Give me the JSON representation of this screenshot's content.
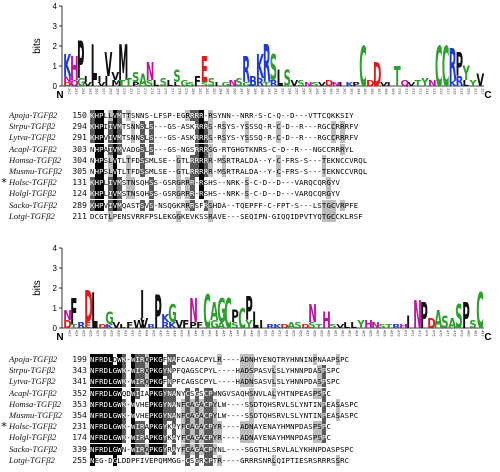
{
  "logo_a": {
    "ylabel": "bits",
    "yticks": [
      "0",
      "1",
      "2",
      "3",
      "4"
    ],
    "n_label": "N",
    "c_label": "C",
    "columns": [
      [
        [
          "K",
          1.1
        ],
        [
          "N",
          0.3
        ],
        [
          "D",
          0.2
        ]
      ],
      [
        [
          "H",
          1.2
        ],
        [
          "Q",
          0.3
        ]
      ],
      [
        [
          "P",
          1.9
        ],
        [
          "G",
          0.4
        ]
      ],
      [
        [
          "I",
          0.3
        ],
        [
          "V",
          0.2
        ]
      ],
      [
        [
          "L",
          1.8
        ],
        [
          "I",
          0.3
        ]
      ],
      [
        [
          "I",
          0.3
        ],
        [
          "V",
          0.2
        ]
      ],
      [
        [
          "V",
          1.2
        ],
        [
          "I",
          0.5
        ]
      ],
      [
        [
          "V",
          0.4
        ],
        [
          "M",
          0.3
        ]
      ],
      [
        [
          "M",
          1.8
        ],
        [
          "T",
          0.3
        ]
      ],
      [
        [
          "T",
          0.4
        ]
      ],
      [
        [
          "S",
          0.5
        ],
        [
          "P",
          0.2
        ]
      ],
      [
        [
          "A",
          0.6
        ]
      ],
      [
        [
          "N",
          0.9
        ],
        [
          "S",
          0.3
        ]
      ],
      [
        [
          "L",
          0.3
        ]
      ],
      [
        [
          "S",
          0.4
        ]
      ],
      [
        [
          "L",
          0.3
        ]
      ],
      [
        [
          "S",
          0.6
        ],
        [
          "L",
          0.2
        ]
      ],
      [
        [
          "G",
          0.3
        ]
      ],
      [
        [
          "S",
          0.2
        ]
      ],
      [
        [
          "F",
          0.5
        ]
      ],
      [
        [
          "E",
          1.3
        ],
        [
          "S",
          0.2
        ]
      ],
      [
        [
          "S",
          0.4
        ]
      ],
      [
        [
          "I",
          0.2
        ]
      ],
      [
        [
          "G",
          0.2
        ]
      ],
      [
        [
          "N",
          0.3
        ]
      ],
      [
        [
          "S",
          0.4
        ]
      ],
      [
        [
          "R",
          1.3
        ],
        [
          "G",
          0.2
        ]
      ],
      [
        [
          "B",
          0.5
        ]
      ],
      [
        [
          "K",
          1.2
        ],
        [
          "R",
          0.4
        ]
      ],
      [
        [
          "R",
          1.9
        ],
        [
          "T",
          0.2
        ]
      ],
      [
        [
          "S",
          1.3
        ],
        [
          "R",
          0.3
        ]
      ],
      [
        [
          "L",
          0.8
        ]
      ],
      [
        [
          "S",
          0.8
        ]
      ],
      [
        [
          "V",
          0.3
        ]
      ],
      [
        [
          "S",
          0.3
        ]
      ],
      [
        [
          "N",
          0.2
        ]
      ],
      [
        [
          "S",
          0.2
        ]
      ],
      [
        [
          "V",
          0.2
        ]
      ],
      [
        [
          "D",
          0.3
        ]
      ],
      [
        [
          "N",
          0.2
        ]
      ],
      [
        [
          "I",
          0.2
        ]
      ],
      [
        [
          "K",
          0.2
        ]
      ],
      [
        [
          "P",
          0.2
        ]
      ],
      [
        [
          "C",
          2.0
        ]
      ],
      [
        [
          "D",
          0.3
        ]
      ],
      [
        [
          "D",
          1.2
        ]
      ],
      [
        [
          "V",
          0.2
        ]
      ],
      [
        [
          "I",
          0.2
        ]
      ],
      [
        [
          "T",
          1.0
        ]
      ],
      [
        [
          "Q",
          0.3
        ]
      ],
      [
        [
          "V",
          0.2
        ]
      ],
      [
        [
          "T",
          0.3
        ]
      ],
      [
        [
          "Y",
          0.4
        ]
      ],
      [
        [
          "N",
          0.3
        ]
      ],
      [
        [
          "C",
          2.0
        ]
      ],
      [
        [
          "C",
          2.0
        ]
      ],
      [
        [
          "R",
          1.6
        ],
        [
          "K",
          0.3
        ]
      ],
      [
        [
          "P",
          1.2
        ],
        [
          "R",
          0.5
        ]
      ],
      [
        [
          "Y",
          0.7
        ],
        [
          "L",
          0.3
        ]
      ],
      [
        [
          "Y",
          0.3
        ]
      ],
      [
        [
          "V",
          0.6
        ]
      ]
    ],
    "positions": [
      "262",
      "263",
      "264",
      "265",
      "266",
      "267",
      "268",
      "269",
      "270",
      "271",
      "272",
      "273",
      "274",
      "275",
      "276",
      "277",
      "278",
      "279",
      "280",
      "281",
      "282",
      "283",
      "284",
      "285",
      "286",
      "287",
      "288",
      "289",
      "290",
      "291",
      "292",
      "293",
      "294",
      "295",
      "296",
      "297",
      "298",
      "299",
      "300",
      "301",
      "302",
      "303",
      "304",
      "305",
      "306",
      "307",
      "308",
      "309",
      "310",
      "311",
      "312",
      "313",
      "314",
      "315",
      "316",
      "317",
      "318",
      "319",
      "320",
      "321",
      "322"
    ]
  },
  "logo_b": {
    "ylabel": "bits",
    "yticks": [
      "0",
      "1",
      "2",
      "3",
      "4"
    ],
    "n_label": "N",
    "c_label": "C",
    "columns": [
      [
        [
          "N",
          0.5
        ],
        [
          "D",
          0.4
        ]
      ],
      [
        [
          "F",
          1.3
        ],
        [
          "T",
          0.2
        ]
      ],
      [
        [
          "R",
          0.3
        ]
      ],
      [
        [
          "D",
          1.6
        ],
        [
          "E",
          0.3
        ]
      ],
      [
        [
          "L",
          1.8
        ]
      ],
      [
        [
          "D",
          0.2
        ]
      ],
      [
        [
          "G",
          0.6
        ],
        [
          "K",
          0.2
        ]
      ],
      [
        [
          "V",
          0.3
        ]
      ],
      [
        [
          "L",
          0.2
        ]
      ],
      [
        [
          "F",
          0.3
        ]
      ],
      [
        [
          "W",
          0.4
        ]
      ],
      [
        [
          "I",
          1.4
        ],
        [
          "V",
          0.5
        ]
      ],
      [
        [
          "R",
          0.2
        ]
      ],
      [
        [
          "P",
          1.7
        ]
      ],
      [
        [
          "R",
          0.3
        ],
        [
          "K",
          0.4
        ]
      ],
      [
        [
          "G",
          0.9
        ],
        [
          "K",
          0.3
        ]
      ],
      [
        [
          "V",
          0.4
        ]
      ],
      [
        [
          "F",
          0.4
        ]
      ],
      [
        [
          "N",
          1.2
        ],
        [
          "P",
          0.3
        ]
      ],
      [
        [
          "F",
          0.3
        ]
      ],
      [
        [
          "C",
          1.7
        ]
      ],
      [
        [
          "A",
          0.9
        ],
        [
          "G",
          0.4
        ]
      ],
      [
        [
          "G",
          1.2
        ],
        [
          "A",
          0.3
        ]
      ],
      [
        [
          "C",
          1.5
        ]
      ],
      [
        [
          "P",
          0.6
        ],
        [
          "S",
          0.3
        ]
      ],
      [
        [
          "C",
          1.0
        ]
      ],
      [
        [
          "P",
          1.2
        ],
        [
          "Y",
          0.4
        ]
      ],
      [
        [
          "L",
          0.8
        ]
      ],
      [
        [
          "I",
          0.4
        ]
      ],
      [
        [
          "R",
          0.2
        ]
      ],
      [
        [
          "K",
          0.2
        ]
      ],
      [
        [
          "D",
          0.2
        ]
      ],
      [
        [
          "A",
          0.3
        ]
      ],
      [
        [
          "S",
          0.3
        ]
      ],
      [
        [
          "D",
          0.2
        ]
      ],
      [
        [
          "N",
          0.9
        ],
        [
          "S",
          0.3
        ]
      ],
      [
        [
          "T",
          0.2
        ]
      ],
      [
        [
          "H",
          0.8
        ]
      ],
      [
        [
          "S",
          0.2
        ]
      ],
      [
        [
          "V",
          0.2
        ]
      ],
      [
        [
          "L",
          0.3
        ]
      ],
      [
        [
          "L",
          0.3
        ]
      ],
      [
        [
          "Y",
          0.4
        ]
      ],
      [
        [
          "H",
          0.4
        ]
      ],
      [
        [
          "N",
          0.3
        ]
      ],
      [
        [
          "S",
          0.2
        ]
      ],
      [
        [
          "T",
          0.2
        ]
      ],
      [
        [
          "R",
          0.2
        ]
      ],
      [
        [
          "H",
          0.2
        ]
      ],
      [
        [
          "I",
          0.6
        ]
      ],
      [
        [
          "N",
          1.4
        ]
      ],
      [
        [
          "P",
          1.3
        ]
      ],
      [
        [
          "D",
          0.5
        ]
      ],
      [
        [
          "A",
          0.9
        ]
      ],
      [
        [
          "S",
          0.6
        ]
      ],
      [
        [
          "A",
          0.5
        ]
      ],
      [
        [
          "S",
          1.2
        ]
      ],
      [
        [
          "P",
          1.3
        ]
      ],
      [
        [
          "S",
          0.4
        ]
      ],
      [
        [
          "C",
          1.8
        ]
      ]
    ],
    "positions": [
      "423",
      "424",
      "425",
      "426",
      "427",
      "428",
      "429",
      "430",
      "431",
      "432",
      "433",
      "434",
      "435",
      "436",
      "437",
      "438",
      "439",
      "440",
      "441",
      "442",
      "443",
      "444",
      "445",
      "446",
      "447",
      "448",
      "449",
      "450",
      "451",
      "452",
      "453",
      "454",
      "455",
      "456",
      "457",
      "458",
      "459",
      "460",
      "461",
      "462",
      "463",
      "464",
      "465",
      "466",
      "467",
      "468",
      "469",
      "470",
      "471",
      "472",
      "473",
      "474",
      "475",
      "476",
      "477",
      "478",
      "479",
      "480",
      "481",
      "482"
    ]
  },
  "alignment_a": {
    "rows": [
      {
        "star": "",
        "name": "Apoja-TGFβ2",
        "start": "150",
        "seq": "KHPLLVMTTSNNS-LFSP-EGRRRR-RSYNN--NRR-S-C-Q--D---VTTCQKKSIY"
      },
      {
        "star": "",
        "name": "Strpu-TGFβ2",
        "start": "294",
        "seq": "KHPIIVMTSNNSLS---GS-ASKRRRS-RSYS-YSSSQ-R-C-D--R---RGCCRRRFV"
      },
      {
        "star": "",
        "name": "Lytva-TGFβ2",
        "start": "291",
        "seq": "KHPVIVMTSNNSLS---GS-ASKRRRS-RSYS-YSSSQ-R-C-D--R---RGCCRRRFV"
      },
      {
        "star": "",
        "name": "Acapl-TGFβ2",
        "start": "303",
        "seq": "NHPAIVMVADGSLS---GS-NGSRRRSG-RTGHGTKNRS-C-D--R---NGCCRRRYL"
      },
      {
        "star": "",
        "name": "Homsa-TGFβ2",
        "start": "304",
        "seq": "NHPSLVTLTFDSSMLSE--GTLRRRRR-MSRTRALDA--Y-C-FRS-S---TEKNCCVRQL"
      },
      {
        "star": "",
        "name": "Musmu-TGFβ2",
        "start": "305",
        "seq": "NHPSLVTLTFDSSMLSE--GTLRRRRR-MSRTRALDA--Y-C-FRS-S---TEKNCCVRQL"
      },
      {
        "star": "*",
        "name": "Holsc-TGFβ2",
        "start": "131",
        "seq": "KHPLIVMSTNSQHSS-GSRGRRR-RSHS--NRK-S-C-D--D---VARQCQRGYV"
      },
      {
        "star": "",
        "name": "Holgl-TGFβ2",
        "start": "124",
        "seq": "KHPLIVMSTNSQHSS-GSRGRRR-RSHS--NRK-S-C-D--D---VARQCQRGYV"
      },
      {
        "star": "",
        "name": "Sacko-TGFβ2",
        "start": "289",
        "seq": "KHPVIVMQASTSVS-NSQGKRRRSFRSHDA--TQEPFF-C-FPT-S---LSTGCVRPFE"
      },
      {
        "star": "",
        "name": "Lotgi-TGFβ2",
        "start": "211",
        "seq": "DCGTLPENSVRRFPSLEKGGKEVKSSRAVE---SEQIPN-GIQQIDPVTYQTGCCKLRSF"
      }
    ]
  },
  "alignment_b": {
    "rows": [
      {
        "star": "",
        "name": "Apoja-TGFβ2",
        "start": "199",
        "seq": "NFRDLDWK-WIRQPKGFNAFCAGACPYLR----ADNHYENQTRYHNNINPNAAPSPC"
      },
      {
        "star": "",
        "name": "Strpu-TGFβ2",
        "start": "343",
        "seq": "NFRDLGWK-WIRQPKGYNPFQAGSCPYL----HADSPASVLSLYHNNPDASPSPC"
      },
      {
        "star": "",
        "name": "Lytva-TGFβ2",
        "start": "341",
        "seq": "NFRDLGWK-WIRQPKGFNPFCAGSCPYL----HADNSASVLSLYHNNPDASPSPC"
      },
      {
        "star": "",
        "name": "Acapl-TGFβ2",
        "start": "352",
        "seq": "NFRDLGWQDWIIAPKGYNANYCSGSCPWNGVSAQHSNVLALYHTNPEASPSPC"
      },
      {
        "star": "",
        "name": "Homsa-TGFβ2",
        "start": "353",
        "seq": "NFRDLGWK-WVHEPKGYNANFCAGACPYLW----SSDTQHSRVLSLYNTINPEASASPC"
      },
      {
        "star": "",
        "name": "Musmu-TGFβ2",
        "start": "354",
        "seq": "NFRDLGWK-WVHEPKGYNANFCAGACPYLW----SSDTQHSRVLSLYNTINPEASASPC"
      },
      {
        "star": "*",
        "name": "Holsc-TGFβ2",
        "start": "231",
        "seq": "NFRDLGWK-WIRAPKGYKAYFCAGACPYR----ADNAYENAYHMNPDASPSPC"
      },
      {
        "star": "",
        "name": "Holgl-TGFβ2",
        "start": "174",
        "seq": "NFRDLGWK-WIRAPKGYKAYFCAGACPYR----ADNAYENAYHMNPDASPSPC"
      },
      {
        "star": "",
        "name": "Sacko-TGFβ2",
        "start": "339",
        "seq": "NFRDLGWN-WIRQPKGYRAYFCAGACPYNL----SGGTHLSRVLALYKHNPDASPSPC"
      },
      {
        "star": "",
        "name": "Lotgi-TGFβ2",
        "start": "255",
        "seq": "NEG-DGLDDPFIVEPQMMGG-CSGRCPTR----GRRRSNRLQIPTIESRSRRRSSRC"
      }
    ]
  },
  "colors": {
    "A": "#2ca02c",
    "C": "#2ca02c",
    "G": "#2ca02c",
    "S": "#2ca02c",
    "T": "#2ca02c",
    "Y": "#2ca02c",
    "N": "#c0149e",
    "Q": "#c0149e",
    "H": "#c0149e",
    "K": "#1f3ad8",
    "R": "#1f3ad8",
    "D": "#e31a1c",
    "E": "#e31a1c",
    "P": "#111111",
    "L": "#111111",
    "I": "#111111",
    "V": "#111111",
    "M": "#111111",
    "F": "#111111",
    "W": "#111111",
    "B": "#1f3ad8"
  }
}
